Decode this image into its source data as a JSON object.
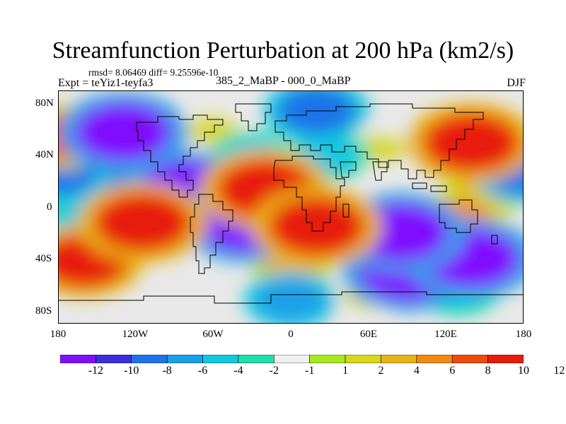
{
  "title": "Streamfunction Perturbation at 200 hPa (km2/s)",
  "stats_line": "rmsd= 8.06469 diff= 9.25596e-10",
  "expt_line": "Expt = teYiz1-teyfa3",
  "diff_label": "385_2_MaBP - 000_0_MaBP",
  "season": "DJF",
  "lat_labels": [
    "80N",
    "40N",
    "0",
    "40S",
    "80S"
  ],
  "lon_labels": [
    "180",
    "120W",
    "60W",
    "0",
    "60E",
    "120E",
    "180"
  ],
  "colorbar": {
    "colors": [
      "#7f10ff",
      "#3a2fe0",
      "#1f73e8",
      "#1aa0e8",
      "#12c8e0",
      "#1ee0a8",
      "#f0f0f0",
      "#a8e81c",
      "#d8d81a",
      "#e8b418",
      "#f08a10",
      "#f04a0a",
      "#e81c0a"
    ],
    "labels": [
      "-12",
      "-10",
      "-8",
      "-6",
      "-4",
      "-2",
      "-1",
      "1",
      "2",
      "4",
      "6",
      "8",
      "10",
      "12"
    ]
  },
  "chart_data": {
    "type": "heatmap",
    "description_units": "km2/s",
    "x_range": [
      -180,
      180
    ],
    "y_range": [
      -90,
      90
    ],
    "levels": [
      -12,
      -10,
      -8,
      -6,
      -4,
      -2,
      -1,
      1,
      2,
      4,
      6,
      8,
      10,
      12
    ],
    "features": [
      {
        "lon": -130,
        "lat": 58,
        "value": -12
      },
      {
        "lon": -80,
        "lat": 13,
        "value": -12
      },
      {
        "lon": -35,
        "lat": -12,
        "value": -12
      },
      {
        "lon": -160,
        "lat": 25,
        "value": -8
      },
      {
        "lon": -180,
        "lat": 28,
        "value": -8
      },
      {
        "lon": 180,
        "lat": 28,
        "value": -8
      },
      {
        "lon": 90,
        "lat": -50,
        "value": -12
      },
      {
        "lon": 140,
        "lat": -40,
        "value": -12
      },
      {
        "lon": 85,
        "lat": -20,
        "value": -12
      },
      {
        "lon": 20,
        "lat": 75,
        "value": -8
      },
      {
        "lon": -30,
        "lat": 40,
        "value": -4
      },
      {
        "lon": 30,
        "lat": 40,
        "value": -4
      },
      {
        "lon": 0,
        "lat": -72,
        "value": -6
      },
      {
        "lon": 130,
        "lat": -65,
        "value": -4
      },
      {
        "lon": -160,
        "lat": -10,
        "value": -4
      },
      {
        "lon": -20,
        "lat": 14,
        "value": 12
      },
      {
        "lon": 20,
        "lat": -15,
        "value": 12
      },
      {
        "lon": 140,
        "lat": 50,
        "value": 12
      },
      {
        "lon": -115,
        "lat": -12,
        "value": 12
      },
      {
        "lon": -160,
        "lat": -42,
        "value": 10
      },
      {
        "lon": -175,
        "lat": 55,
        "value": 8
      },
      {
        "lon": 130,
        "lat": -10,
        "value": 6
      },
      {
        "lon": 150,
        "lat": 10,
        "value": 4
      },
      {
        "lon": 0,
        "lat": -45,
        "value": 4
      },
      {
        "lon": 60,
        "lat": -68,
        "value": 2
      },
      {
        "lon": 70,
        "lat": 45,
        "value": 2
      },
      {
        "lon": -60,
        "lat": 60,
        "value": 2
      }
    ]
  }
}
